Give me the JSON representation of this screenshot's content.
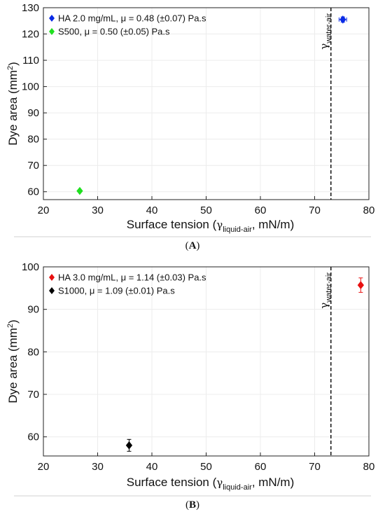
{
  "panels": [
    {
      "label": "(A)",
      "label_letter": "A",
      "chart_data": {
        "type": "scatter",
        "xlabel_main": "Surface tension (",
        "xlabel_gamma": "γ",
        "xlabel_sub": "liquid-air",
        "xlabel_tail": ", mN/m)",
        "ylabel_main": "Dye area (mm",
        "ylabel_sup": "2",
        "ylabel_tail": ")",
        "xlim": [
          20,
          80
        ],
        "ylim": [
          57,
          130
        ],
        "xticks": [
          20,
          30,
          40,
          50,
          60,
          70,
          80
        ],
        "yticks": [
          60,
          70,
          80,
          90,
          100,
          110,
          120,
          130
        ],
        "grid": true,
        "legend_position": "top-left",
        "vline": {
          "x": 73,
          "gamma": "γ",
          "sub": "water-air",
          "style": "dashed"
        },
        "series": [
          {
            "name": "HA 2.0 mg/mL, μ = 0.48 (±0.07) Pa.s",
            "color": "#0a2be6",
            "marker": "diamond",
            "points": [
              {
                "x": 75.2,
                "y": 125.5,
                "xerr": 0.7,
                "yerr": 1.0
              }
            ]
          },
          {
            "name": "S500, μ = 0.50 (±0.05) Pa.s",
            "color": "#1fe01f",
            "marker": "diamond",
            "points": [
              {
                "x": 26.7,
                "y": 60.3,
                "xerr": 0,
                "yerr": 0
              }
            ]
          }
        ]
      }
    },
    {
      "label": "(B)",
      "label_letter": "B",
      "chart_data": {
        "type": "scatter",
        "xlabel_main": "Surface tension (",
        "xlabel_gamma": "γ",
        "xlabel_sub": "liquid-air",
        "xlabel_tail": ", mN/m)",
        "ylabel_main": "Dye area (mm",
        "ylabel_sup": "2",
        "ylabel_tail": ")",
        "xlim": [
          20,
          80
        ],
        "ylim": [
          55.5,
          100
        ],
        "xticks": [
          20,
          30,
          40,
          50,
          60,
          70,
          80
        ],
        "yticks": [
          60,
          70,
          80,
          90,
          100
        ],
        "grid": true,
        "legend_position": "top-left",
        "vline": {
          "x": 73,
          "gamma": "γ",
          "sub": "water-air",
          "style": "dashed"
        },
        "series": [
          {
            "name": "HA 3.0 mg/mL, μ = 1.14 (±0.03) Pa.s",
            "color": "#e81010",
            "marker": "diamond",
            "points": [
              {
                "x": 78.5,
                "y": 95.7,
                "xerr": 0,
                "yerr": 1.7
              }
            ]
          },
          {
            "name": "S1000, μ = 1.09 (±0.01) Pa.s",
            "color": "#000000",
            "marker": "diamond",
            "points": [
              {
                "x": 35.8,
                "y": 58.0,
                "xerr": 0,
                "yerr": 1.4
              }
            ]
          }
        ]
      }
    }
  ]
}
